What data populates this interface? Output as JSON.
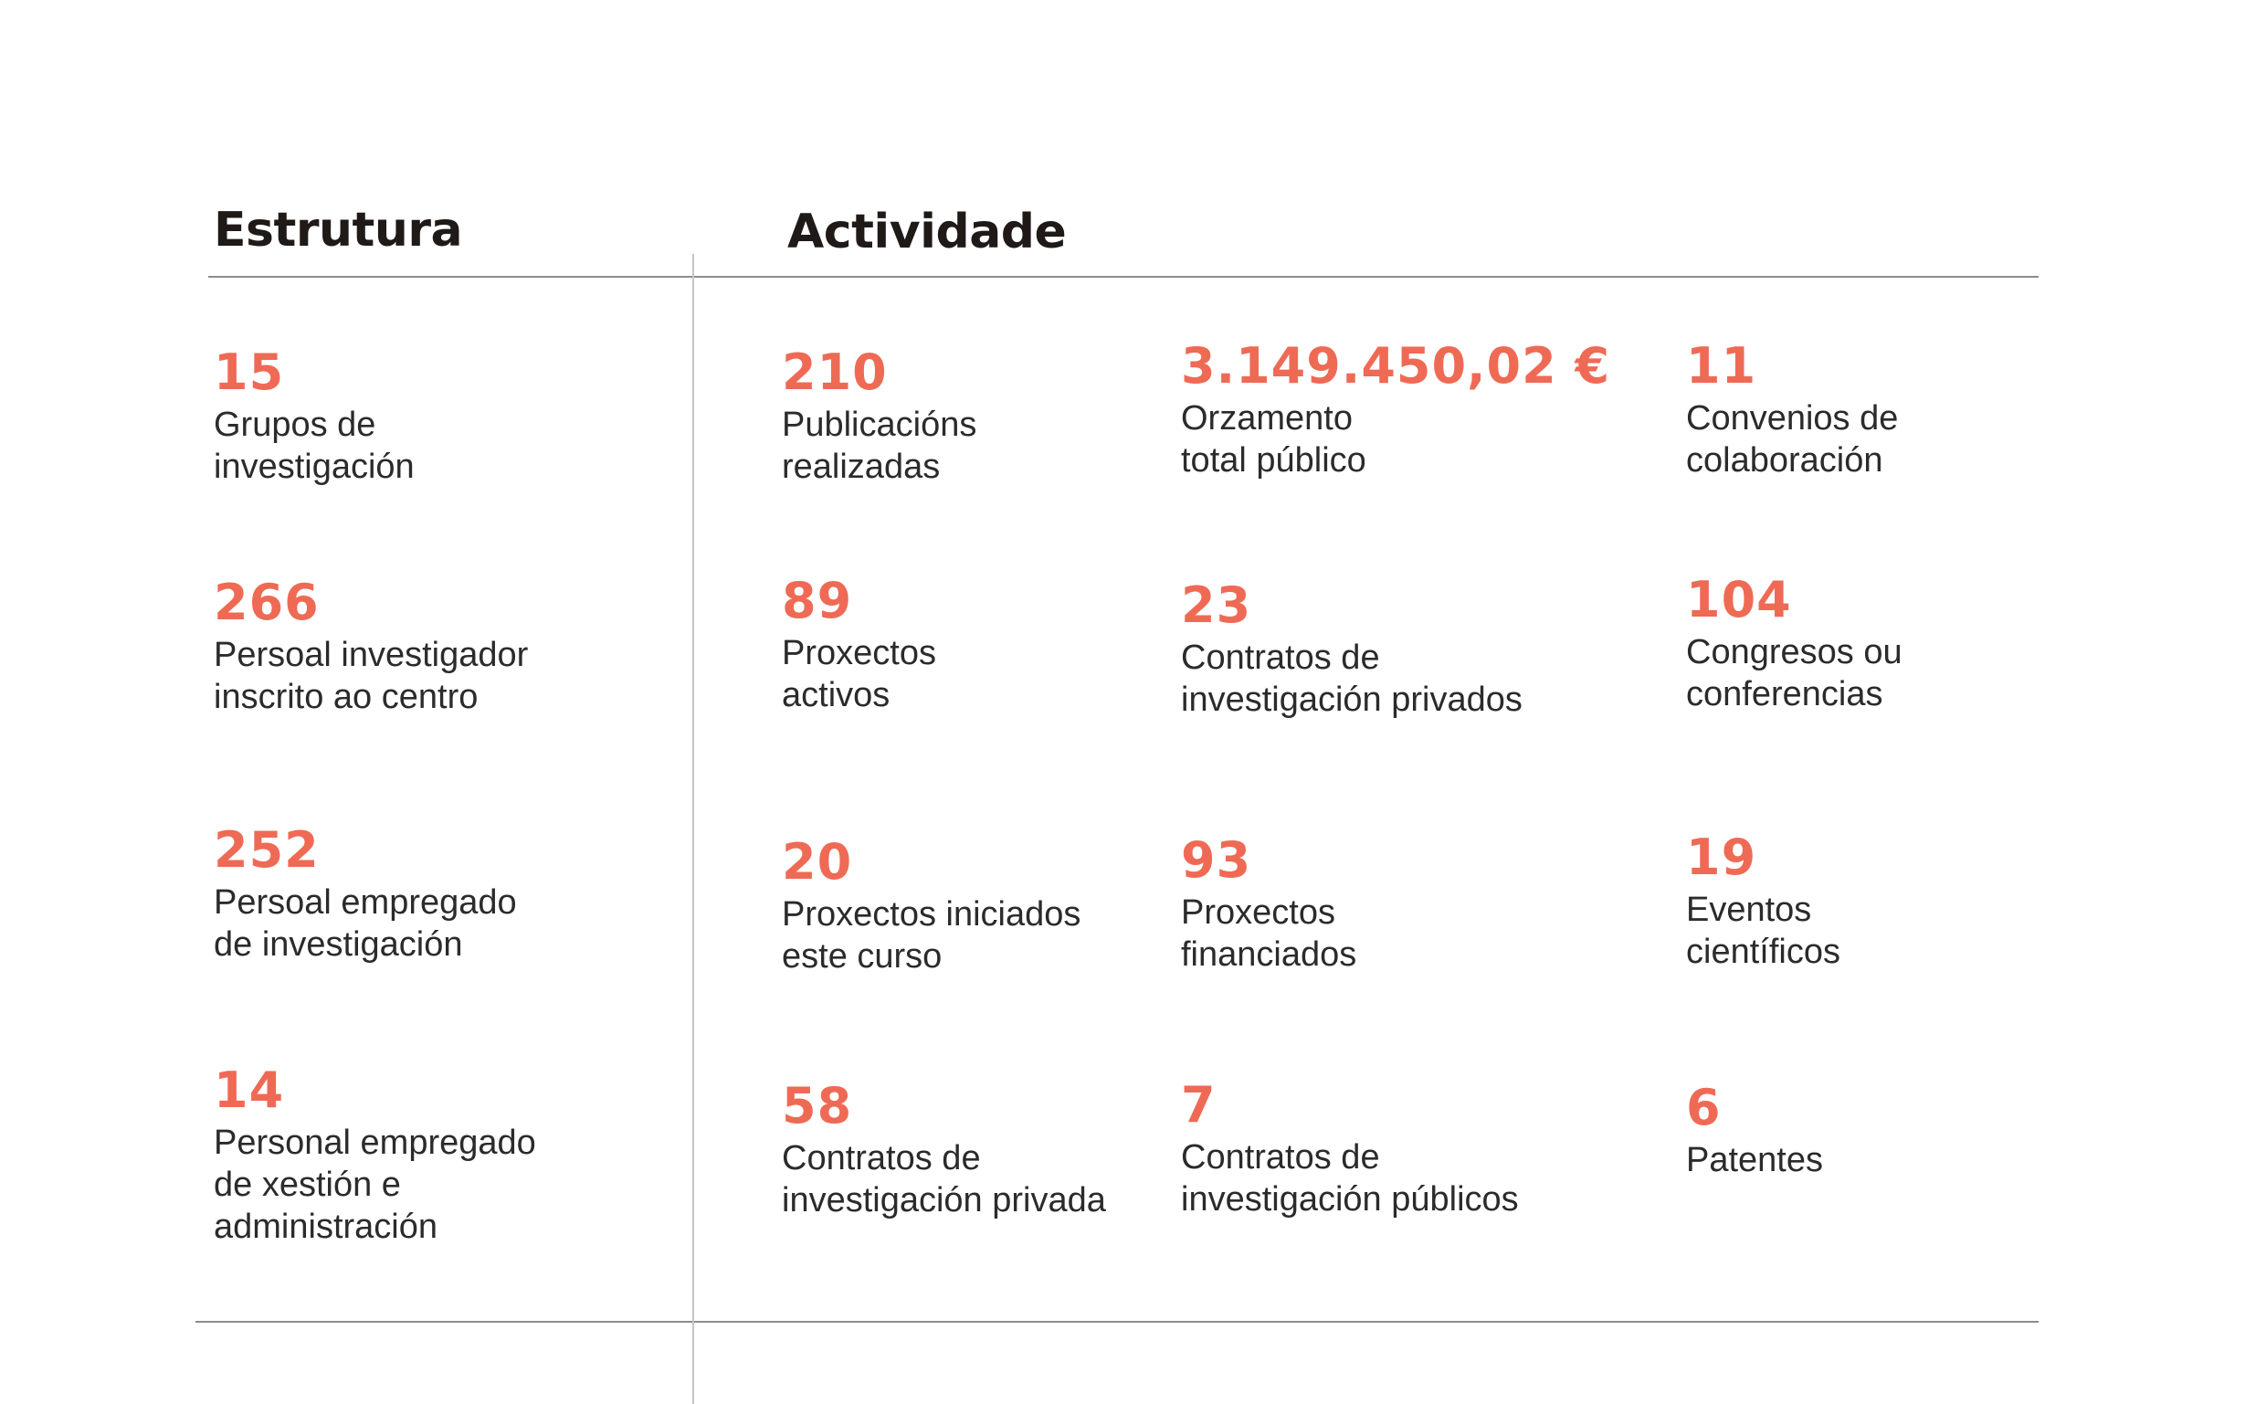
{
  "sections": {
    "estrutura": "Estrutura",
    "actividade": "Actividade"
  },
  "estrutura": [
    {
      "value": "15",
      "label": "Grupos de\ninvestigación"
    },
    {
      "value": "266",
      "label": "Persoal investigador\ninscrito ao centro"
    },
    {
      "value": "252",
      "label": "Persoal empregado\nde investigación"
    },
    {
      "value": "14",
      "label": "Personal empregado\nde xestión e\nadministración"
    }
  ],
  "actividade": [
    {
      "value": "210",
      "label": "Publicacións\nrealizadas"
    },
    {
      "value": "3.149.450,02 €",
      "label": "Orzamento\ntotal público"
    },
    {
      "value": "11",
      "label": "Convenios de\ncolaboración"
    },
    {
      "value": "89",
      "label": "Proxectos\nactivos"
    },
    {
      "value": "23",
      "label": "Contratos de\ninvestigación privados"
    },
    {
      "value": "104",
      "label": "Congresos ou\nconferencias"
    },
    {
      "value": "20",
      "label": "Proxectos iniciados\neste curso"
    },
    {
      "value": "93",
      "label": "Proxectos\nfinanciados"
    },
    {
      "value": "19",
      "label": "Eventos\ncientíficos"
    },
    {
      "value": "58",
      "label": "Contratos de\ninvestigación privada"
    },
    {
      "value": "7",
      "label": "Contratos de\ninvestigación públicos"
    },
    {
      "value": "6",
      "label": "Patentes"
    }
  ],
  "colors": {
    "accent": "#ef6a55",
    "heading": "#1f1a17",
    "text": "#2b2b2b",
    "rule": "#8c8c8c"
  }
}
